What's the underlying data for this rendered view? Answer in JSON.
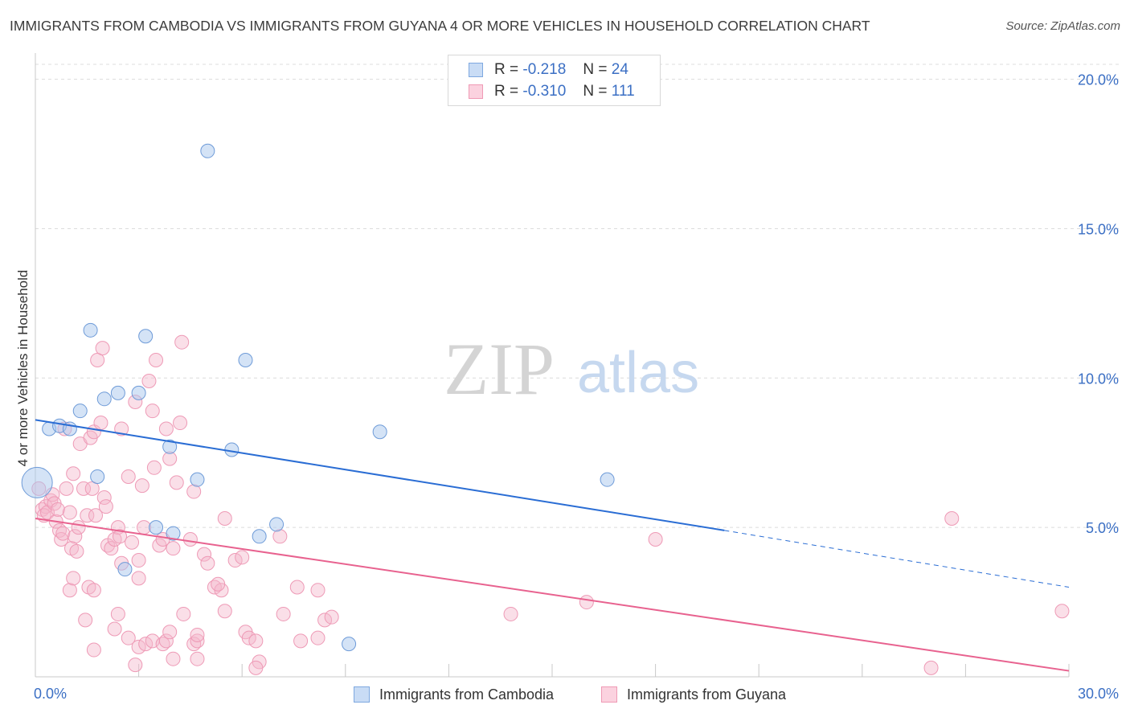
{
  "title": "IMMIGRANTS FROM CAMBODIA VS IMMIGRANTS FROM GUYANA 4 OR MORE VEHICLES IN HOUSEHOLD CORRELATION CHART",
  "source": "Source: ZipAtlas.com",
  "watermark": {
    "zip": "ZIP",
    "atlas": "atlas"
  },
  "legend": {
    "series1": {
      "r_label": "R =",
      "r_value": "-0.218",
      "n_label": "N =",
      "n_value": "24"
    },
    "series2": {
      "r_label": "R =",
      "r_value": "-0.310",
      "n_label": "N =",
      "n_value": "111"
    }
  },
  "colors": {
    "cambodia": "#a9c7ee",
    "cambodia_line": "#2a6dd4",
    "guyana": "#f5b7cb",
    "guyana_line": "#e8628f",
    "axis_text": "#3b6fc4"
  },
  "chart_data": {
    "type": "scatter",
    "title": "IMMIGRANTS FROM CAMBODIA VS IMMIGRANTS FROM GUYANA 4 OR MORE VEHICLES IN HOUSEHOLD CORRELATION CHART",
    "xlabel": "",
    "ylabel": "4 or more Vehicles in Household",
    "xlim": [
      0,
      30
    ],
    "ylim": [
      0,
      20.5
    ],
    "x_tick_labels": [
      "0.0%",
      "30.0%"
    ],
    "y_ticks": [
      5,
      10,
      15,
      20
    ],
    "y_tick_labels": [
      "5.0%",
      "10.0%",
      "15.0%",
      "20.0%"
    ],
    "grid": true,
    "legend_position": "top-center",
    "series": [
      {
        "name": "Immigrants from Cambodia",
        "color": "#a9c7ee",
        "trend": {
          "x": [
            0,
            20
          ],
          "y": [
            8.6,
            4.9
          ],
          "dashed_to": [
            30,
            3.0
          ]
        },
        "points": [
          {
            "x": 0.05,
            "y": 6.5,
            "big": true
          },
          {
            "x": 1.6,
            "y": 11.6
          },
          {
            "x": 3.2,
            "y": 11.4
          },
          {
            "x": 5.0,
            "y": 17.6
          },
          {
            "x": 6.1,
            "y": 10.6
          },
          {
            "x": 1.3,
            "y": 8.9
          },
          {
            "x": 2.0,
            "y": 9.3
          },
          {
            "x": 2.4,
            "y": 9.5
          },
          {
            "x": 3.0,
            "y": 9.5
          },
          {
            "x": 0.4,
            "y": 8.3
          },
          {
            "x": 0.7,
            "y": 8.4
          },
          {
            "x": 1.0,
            "y": 8.3
          },
          {
            "x": 3.9,
            "y": 7.7
          },
          {
            "x": 5.7,
            "y": 7.6
          },
          {
            "x": 10.0,
            "y": 8.2
          },
          {
            "x": 1.8,
            "y": 6.7
          },
          {
            "x": 4.7,
            "y": 6.6
          },
          {
            "x": 16.6,
            "y": 6.6
          },
          {
            "x": 3.5,
            "y": 5.0
          },
          {
            "x": 4.0,
            "y": 4.8
          },
          {
            "x": 6.5,
            "y": 4.7
          },
          {
            "x": 7.0,
            "y": 5.1
          },
          {
            "x": 2.6,
            "y": 3.6
          },
          {
            "x": 9.1,
            "y": 1.1
          }
        ]
      },
      {
        "name": "Immigrants from Guyana",
        "color": "#f5b7cb",
        "trend": {
          "x": [
            0,
            30
          ],
          "y": [
            5.3,
            0.2
          ]
        },
        "points": [
          {
            "x": 0.1,
            "y": 6.3
          },
          {
            "x": 0.2,
            "y": 5.6
          },
          {
            "x": 0.3,
            "y": 5.7
          },
          {
            "x": 0.25,
            "y": 5.4
          },
          {
            "x": 0.35,
            "y": 5.5
          },
          {
            "x": 0.45,
            "y": 5.9
          },
          {
            "x": 0.5,
            "y": 6.1
          },
          {
            "x": 0.55,
            "y": 5.8
          },
          {
            "x": 0.6,
            "y": 5.2
          },
          {
            "x": 0.65,
            "y": 5.6
          },
          {
            "x": 0.7,
            "y": 4.9
          },
          {
            "x": 0.75,
            "y": 4.6
          },
          {
            "x": 0.8,
            "y": 4.8
          },
          {
            "x": 0.9,
            "y": 6.3
          },
          {
            "x": 1.0,
            "y": 5.5
          },
          {
            "x": 1.05,
            "y": 4.3
          },
          {
            "x": 1.1,
            "y": 6.8
          },
          {
            "x": 1.15,
            "y": 4.7
          },
          {
            "x": 1.2,
            "y": 4.2
          },
          {
            "x": 1.25,
            "y": 5.0
          },
          {
            "x": 1.3,
            "y": 7.8
          },
          {
            "x": 1.4,
            "y": 6.3
          },
          {
            "x": 1.5,
            "y": 5.4
          },
          {
            "x": 1.6,
            "y": 8.0
          },
          {
            "x": 1.65,
            "y": 6.3
          },
          {
            "x": 1.7,
            "y": 8.2
          },
          {
            "x": 1.75,
            "y": 5.4
          },
          {
            "x": 1.8,
            "y": 10.6
          },
          {
            "x": 1.9,
            "y": 8.5
          },
          {
            "x": 1.95,
            "y": 11.0
          },
          {
            "x": 2.0,
            "y": 6.0
          },
          {
            "x": 2.05,
            "y": 5.7
          },
          {
            "x": 2.1,
            "y": 4.4
          },
          {
            "x": 2.2,
            "y": 4.3
          },
          {
            "x": 2.3,
            "y": 4.6
          },
          {
            "x": 2.4,
            "y": 5.0
          },
          {
            "x": 2.45,
            "y": 4.7
          },
          {
            "x": 2.5,
            "y": 3.8
          },
          {
            "x": 2.5,
            "y": 8.3
          },
          {
            "x": 2.7,
            "y": 6.7
          },
          {
            "x": 2.8,
            "y": 4.5
          },
          {
            "x": 2.9,
            "y": 9.2
          },
          {
            "x": 3.0,
            "y": 3.9
          },
          {
            "x": 3.0,
            "y": 3.3
          },
          {
            "x": 3.1,
            "y": 6.4
          },
          {
            "x": 3.15,
            "y": 5.0
          },
          {
            "x": 3.3,
            "y": 9.9
          },
          {
            "x": 3.4,
            "y": 8.9
          },
          {
            "x": 3.45,
            "y": 7.0
          },
          {
            "x": 3.5,
            "y": 10.6
          },
          {
            "x": 3.6,
            "y": 4.4
          },
          {
            "x": 3.7,
            "y": 4.6
          },
          {
            "x": 3.8,
            "y": 8.3
          },
          {
            "x": 3.9,
            "y": 7.3
          },
          {
            "x": 4.0,
            "y": 4.3
          },
          {
            "x": 4.1,
            "y": 6.5
          },
          {
            "x": 4.2,
            "y": 8.5
          },
          {
            "x": 4.25,
            "y": 11.2
          },
          {
            "x": 4.5,
            "y": 4.6
          },
          {
            "x": 4.6,
            "y": 6.2
          },
          {
            "x": 4.9,
            "y": 4.1
          },
          {
            "x": 5.0,
            "y": 3.8
          },
          {
            "x": 5.2,
            "y": 3.0
          },
          {
            "x": 5.4,
            "y": 2.9
          },
          {
            "x": 5.5,
            "y": 2.2
          },
          {
            "x": 5.5,
            "y": 5.3
          },
          {
            "x": 5.8,
            "y": 3.9
          },
          {
            "x": 6.0,
            "y": 4.0
          },
          {
            "x": 6.1,
            "y": 1.5
          },
          {
            "x": 6.2,
            "y": 1.3
          },
          {
            "x": 6.4,
            "y": 1.2
          },
          {
            "x": 6.5,
            "y": 0.5
          },
          {
            "x": 7.1,
            "y": 4.7
          },
          {
            "x": 7.2,
            "y": 2.1
          },
          {
            "x": 7.6,
            "y": 3.0
          },
          {
            "x": 7.7,
            "y": 1.2
          },
          {
            "x": 8.2,
            "y": 2.9
          },
          {
            "x": 8.2,
            "y": 1.3
          },
          {
            "x": 8.4,
            "y": 1.9
          },
          {
            "x": 8.6,
            "y": 2.0
          },
          {
            "x": 1.0,
            "y": 2.9
          },
          {
            "x": 1.1,
            "y": 3.3
          },
          {
            "x": 1.45,
            "y": 1.9
          },
          {
            "x": 1.55,
            "y": 3.0
          },
          {
            "x": 1.7,
            "y": 2.9
          },
          {
            "x": 1.7,
            "y": 0.9
          },
          {
            "x": 2.3,
            "y": 1.6
          },
          {
            "x": 2.4,
            "y": 2.1
          },
          {
            "x": 2.7,
            "y": 1.3
          },
          {
            "x": 2.9,
            "y": 0.4
          },
          {
            "x": 3.0,
            "y": 1.0
          },
          {
            "x": 3.2,
            "y": 1.1
          },
          {
            "x": 3.4,
            "y": 1.2
          },
          {
            "x": 3.7,
            "y": 1.1
          },
          {
            "x": 3.8,
            "y": 1.2
          },
          {
            "x": 3.9,
            "y": 1.5
          },
          {
            "x": 4.0,
            "y": 0.6
          },
          {
            "x": 4.3,
            "y": 2.1
          },
          {
            "x": 4.6,
            "y": 1.1
          },
          {
            "x": 4.7,
            "y": 1.2
          },
          {
            "x": 4.7,
            "y": 0.6
          },
          {
            "x": 4.7,
            "y": 1.4
          },
          {
            "x": 13.8,
            "y": 2.1
          },
          {
            "x": 16.0,
            "y": 2.5
          },
          {
            "x": 18.0,
            "y": 4.6
          },
          {
            "x": 26.0,
            "y": 0.3
          },
          {
            "x": 26.6,
            "y": 5.3
          },
          {
            "x": 29.8,
            "y": 2.2
          },
          {
            "x": 6.4,
            "y": 0.3
          },
          {
            "x": 5.3,
            "y": 3.1
          },
          {
            "x": 0.85,
            "y": 8.3
          }
        ]
      }
    ]
  }
}
